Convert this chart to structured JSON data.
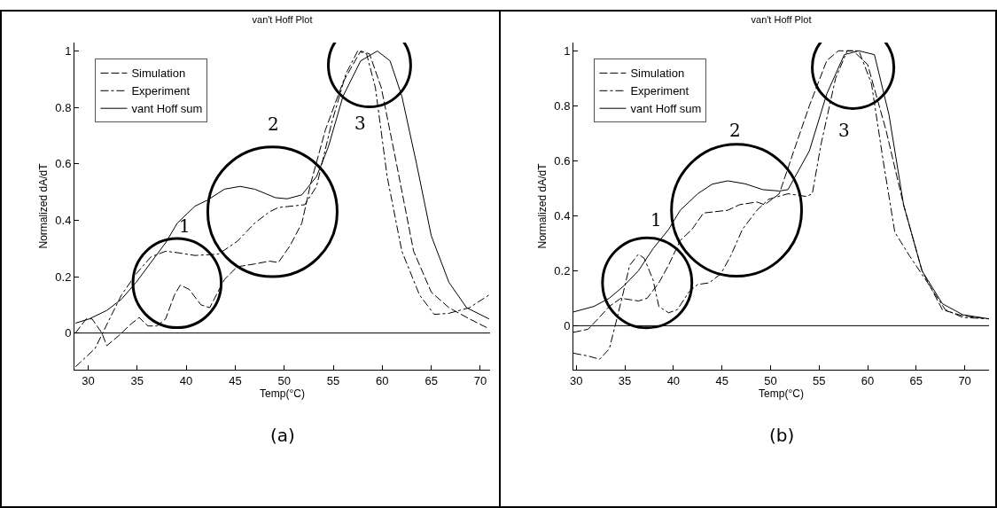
{
  "chart_data": [
    {
      "type": "line",
      "title": "van't Hoff Plot",
      "xlabel": "Temp(°C)",
      "ylabel": "Normalized dA/dT",
      "xlim": [
        28.6,
        71
      ],
      "ylim": [
        -0.13,
        1.03
      ],
      "xticks": [
        30,
        35,
        40,
        45,
        50,
        55,
        60,
        65,
        70
      ],
      "yticks": [
        0,
        0.2,
        0.4,
        0.6,
        0.8,
        1
      ],
      "grid": false,
      "legend": "top left",
      "marker": "none",
      "ref_lines": [
        {
          "axis": "y",
          "value": 0,
          "color": "#000000",
          "line_style": "solid"
        }
      ],
      "annotations": [
        "1",
        "2",
        "3",
        "(a)"
      ],
      "series": [
        {
          "name": "Simulation",
          "color": "#000000",
          "line_style": "dashed",
          "x": [
            28.7,
            29.8,
            30.4,
            31.4,
            31.9,
            33.1,
            34.3,
            35.2,
            36.1,
            37,
            37.9,
            38.8,
            39.4,
            40.3,
            41.5,
            42.4,
            43.9,
            45.2,
            47,
            48.5,
            49.4,
            50.6,
            51.8,
            52.7,
            54.2,
            56,
            57.8,
            58.7,
            59.9,
            61.4,
            63.2,
            65,
            66.8,
            68.9,
            70.9
          ],
          "values": [
            0,
            0.05,
            0.05,
            0,
            -0.045,
            -0.01,
            0.03,
            0.055,
            0.025,
            0.025,
            0.05,
            0.135,
            0.17,
            0.155,
            0.1,
            0.09,
            0.19,
            0.235,
            0.245,
            0.255,
            0.25,
            0.31,
            0.39,
            0.53,
            0.72,
            0.89,
            1,
            0.99,
            0.87,
            0.61,
            0.29,
            0.145,
            0.09,
            0.05,
            0.015
          ]
        },
        {
          "name": "Experiment",
          "color": "#000000",
          "line_style": "dashdot",
          "x": [
            28.7,
            30.7,
            31.9,
            33.4,
            34.9,
            36.4,
            37.9,
            39.1,
            40.9,
            43.3,
            45.2,
            47,
            48.5,
            49.4,
            52.1,
            53.3,
            54.8,
            56.3,
            57.5,
            58.4,
            59.3,
            60.5,
            62,
            63.8,
            65.3,
            66.8,
            68.9,
            70.9
          ],
          "values": [
            -0.12,
            -0.055,
            0.03,
            0.135,
            0.21,
            0.27,
            0.29,
            0.285,
            0.275,
            0.28,
            0.325,
            0.39,
            0.43,
            0.445,
            0.455,
            0.52,
            0.74,
            0.92,
            1,
            0.99,
            0.87,
            0.555,
            0.29,
            0.135,
            0.066,
            0.07,
            0.09,
            0.135
          ]
        },
        {
          "name": "vant Hoff sum",
          "color": "#000000",
          "line_style": "solid",
          "x": [
            28.7,
            30.1,
            31.9,
            33.4,
            34.9,
            36.4,
            37.9,
            39.1,
            40.9,
            42.1,
            43.9,
            45.5,
            47,
            49.1,
            50.3,
            51.8,
            53.3,
            54.5,
            56,
            57.8,
            59.5,
            60.8,
            62,
            63.5,
            65,
            66.8,
            68.6,
            70.9
          ],
          "values": [
            0.035,
            0.05,
            0.08,
            0.12,
            0.18,
            0.25,
            0.32,
            0.39,
            0.45,
            0.47,
            0.51,
            0.52,
            0.51,
            0.48,
            0.476,
            0.49,
            0.555,
            0.66,
            0.84,
            0.965,
            1,
            0.965,
            0.84,
            0.6,
            0.345,
            0.18,
            0.09,
            0.05
          ]
        }
      ]
    },
    {
      "type": "line",
      "title": "van't Hoff Plot",
      "xlabel": "Temp(°C)",
      "ylabel": "Normalized dA/dT",
      "xlim": [
        29.7,
        72.5
      ],
      "ylim": [
        -0.16,
        1.03
      ],
      "xticks": [
        30,
        35,
        40,
        45,
        50,
        55,
        60,
        65,
        70
      ],
      "yticks": [
        0,
        0.2,
        0.4,
        0.6,
        0.8,
        1
      ],
      "grid": false,
      "legend": "top left",
      "marker": "none",
      "ref_lines": [
        {
          "axis": "y",
          "value": 0,
          "color": "#000000",
          "line_style": "solid"
        }
      ],
      "annotations": [
        "1",
        "2",
        "3",
        "(b)"
      ],
      "series": [
        {
          "name": "Simulation",
          "color": "#000000",
          "line_style": "dashed",
          "x": [
            29.7,
            31.2,
            32.1,
            33.4,
            34.6,
            36.4,
            37.3,
            38.5,
            39.5,
            40.7,
            41.9,
            43.1,
            45.6,
            46.8,
            48.6,
            49.4,
            50.9,
            52.4,
            54,
            55.8,
            57,
            58.5,
            60,
            61.9,
            63.7,
            65.6,
            67.7,
            69.8,
            72.5
          ],
          "values": [
            -0.024,
            -0.013,
            0.02,
            0.07,
            0.1,
            0.09,
            0.1,
            0.156,
            0.22,
            0.31,
            0.35,
            0.41,
            0.42,
            0.44,
            0.45,
            0.44,
            0.48,
            0.636,
            0.8,
            0.965,
            1,
            1,
            0.95,
            0.71,
            0.44,
            0.2,
            0.058,
            0.036,
            0.025
          ]
        },
        {
          "name": "Experiment",
          "color": "#000000",
          "line_style": "dashdot",
          "x": [
            29.7,
            31.2,
            32.4,
            33.4,
            34,
            34.7,
            35.5,
            36.4,
            37,
            37.9,
            38.5,
            39.5,
            40.4,
            41.6,
            42.5,
            43.7,
            44.9,
            45.9,
            47.1,
            48.6,
            49.8,
            51.8,
            53.7,
            54.3,
            55.2,
            56.7,
            57.9,
            59.1,
            60.4,
            61.6,
            62.8,
            64.3,
            66.2,
            68,
            69.8,
            72.5
          ],
          "values": [
            -0.1,
            -0.11,
            -0.122,
            -0.084,
            0,
            0.1,
            0.22,
            0.26,
            0.245,
            0.167,
            0.07,
            0.047,
            0.058,
            0.123,
            0.15,
            0.156,
            0.19,
            0.254,
            0.35,
            0.42,
            0.46,
            0.48,
            0.47,
            0.48,
            0.66,
            0.9,
            1,
            1,
            0.88,
            0.6,
            0.34,
            0.255,
            0.155,
            0.058,
            0.03,
            0.025
          ]
        },
        {
          "name": "vant Hoff sum",
          "color": "#000000",
          "line_style": "solid",
          "x": [
            29.7,
            31.8,
            33.4,
            34.9,
            36.4,
            37.9,
            39.5,
            40.7,
            42.5,
            44,
            45.6,
            47.4,
            49.2,
            50.9,
            51.8,
            54,
            55.8,
            57.6,
            59.1,
            60.7,
            62.2,
            63.7,
            65.6,
            67.7,
            69.8,
            72.5
          ],
          "values": [
            0.05,
            0.07,
            0.1,
            0.145,
            0.2,
            0.28,
            0.35,
            0.42,
            0.48,
            0.515,
            0.527,
            0.516,
            0.495,
            0.49,
            0.495,
            0.636,
            0.844,
            0.986,
            1,
            0.986,
            0.767,
            0.44,
            0.2,
            0.08,
            0.04,
            0.025
          ]
        }
      ]
    }
  ]
}
